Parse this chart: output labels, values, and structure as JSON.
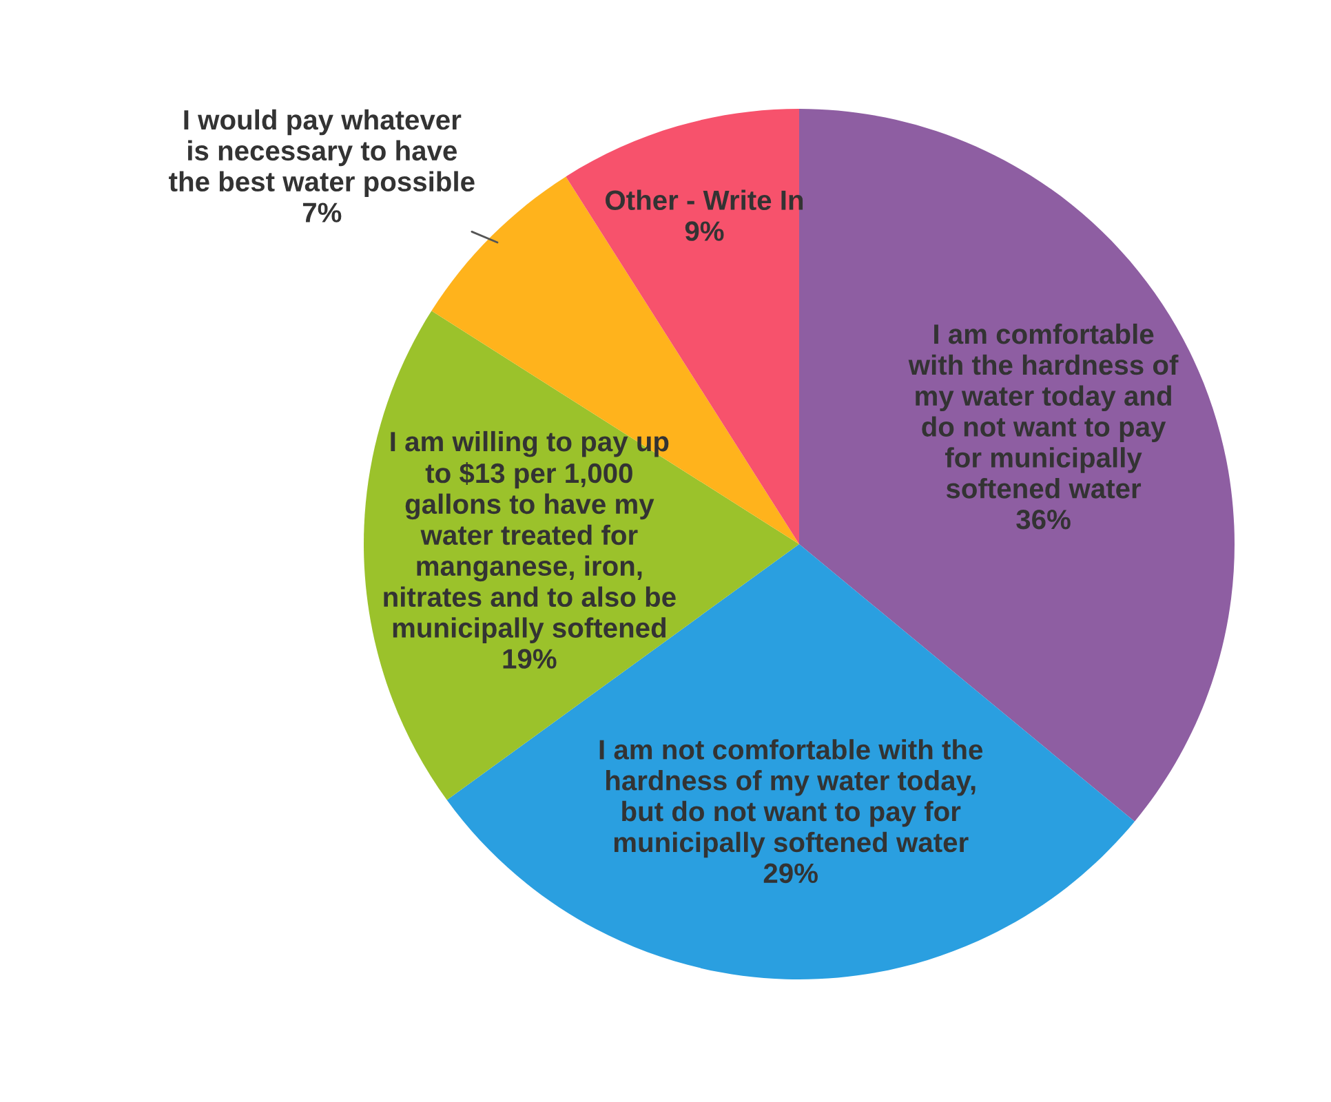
{
  "chart_data": {
    "type": "pie",
    "categories": [
      "I am comfortable\nwith the hardness of\nmy water today and\ndo not want to pay\nfor municipally\nsoftened water",
      "I am not comfortable with the\nhardness of my water today,\nbut do not want to pay for\nmunicipally softened water",
      "I am willing to pay up\nto $13 per 1,000\ngallons to have my\nwater treated for\nmanganese, iron,\nnitrates and to also be\nmunicipally softened",
      "I would pay whatever\nis necessary to have\nthe best water possible",
      "Other - Write In"
    ],
    "values": [
      36,
      29,
      19,
      7,
      9
    ],
    "value_labels": [
      "36%",
      "29%",
      "19%",
      "7%",
      "9%"
    ],
    "colors": [
      "#8e5ea2",
      "#2a9fe0",
      "#9bc22b",
      "#ffb31c",
      "#f7526c"
    ]
  }
}
